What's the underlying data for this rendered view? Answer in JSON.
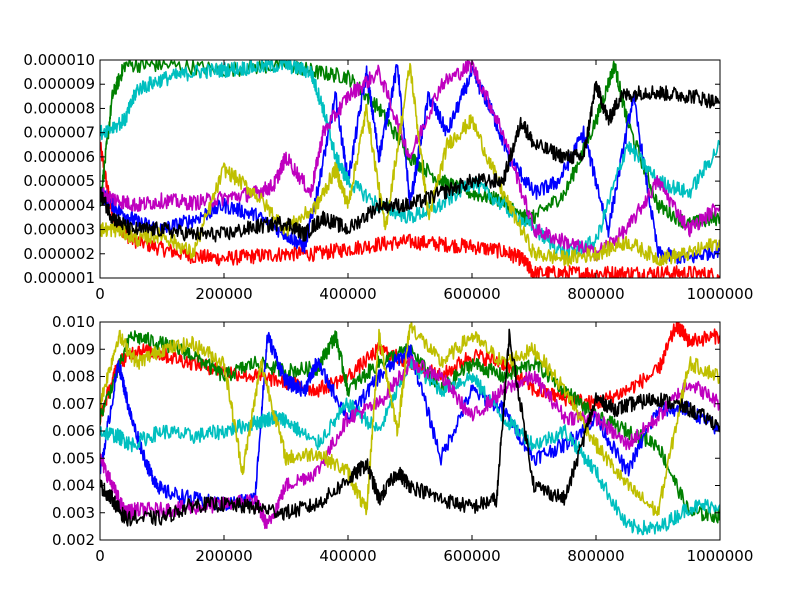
{
  "figure": {
    "background": "#ffffff"
  },
  "chart_data": [
    {
      "type": "line",
      "xlim": [
        0,
        1000000
      ],
      "ylim": [
        1e-06,
        1e-05
      ],
      "x_ticks": [
        0,
        200000,
        400000,
        600000,
        800000,
        1000000
      ],
      "x_tick_labels": [
        "0",
        "200000",
        "400000",
        "600000",
        "800000",
        "1000000"
      ],
      "y_ticks": [
        1e-06,
        2e-06,
        3e-06,
        4e-06,
        5e-06,
        6e-06,
        7e-06,
        8e-06,
        9e-06,
        1e-05
      ],
      "y_tick_labels": [
        "0.000001",
        "0.000002",
        "0.000003",
        "0.000004",
        "0.000005",
        "0.000006",
        "0.000007",
        "0.000008",
        "0.000009",
        "0.000010"
      ],
      "grid": false,
      "legend": "none",
      "series": [
        {
          "color": "#ff0000",
          "x": [
            0,
            20000,
            50000,
            100000,
            150000,
            200000,
            250000,
            300000,
            350000,
            400000,
            450000,
            500000,
            550000,
            600000,
            650000,
            680000,
            700000,
            750000,
            800000,
            850000,
            900000,
            950000,
            1000000
          ],
          "y": [
            6.5e-06,
            3.5e-06,
            2.6e-06,
            2.2e-06,
            1.9e-06,
            1.8e-06,
            1.9e-06,
            2e-06,
            2e-06,
            2.2e-06,
            2.4e-06,
            2.5e-06,
            2.4e-06,
            2.3e-06,
            2.1e-06,
            1.8e-06,
            1.2e-06,
            1.2e-06,
            1.2e-06,
            1.2e-06,
            1.2e-06,
            1.2e-06,
            1.1e-06
          ]
        },
        {
          "color": "#008000",
          "x": [
            0,
            20000,
            40000,
            100000,
            200000,
            300000,
            350000,
            400000,
            450000,
            500000,
            550000,
            600000,
            650000,
            680000,
            700000,
            750000,
            800000,
            830000,
            850000,
            900000,
            950000,
            1000000
          ],
          "y": [
            4e-06,
            8.5e-06,
            9.8e-06,
            9.8e-06,
            9.6e-06,
            9.8e-06,
            9.5e-06,
            9.3e-06,
            8e-06,
            6e-06,
            5e-06,
            4.5e-06,
            4.2e-06,
            3.5e-06,
            3.5e-06,
            4.5e-06,
            7.5e-06,
            9.8e-06,
            7.5e-06,
            4e-06,
            3.2e-06,
            3.5e-06
          ]
        },
        {
          "color": "#0000ff",
          "x": [
            0,
            30000,
            60000,
            100000,
            150000,
            200000,
            250000,
            300000,
            330000,
            350000,
            380000,
            400000,
            430000,
            450000,
            480000,
            500000,
            530000,
            560000,
            600000,
            630000,
            660000,
            700000,
            740000,
            780000,
            820000,
            860000,
            900000,
            950000,
            1000000
          ],
          "y": [
            4.5e-06,
            3.8e-06,
            3.3e-06,
            3e-06,
            3.4e-06,
            4e-06,
            3.6e-06,
            2.8e-06,
            2.3e-06,
            4.5e-06,
            8.5e-06,
            5e-06,
            9.5e-06,
            6e-06,
            9.8e-06,
            4e-06,
            8.5e-06,
            7e-06,
            9.5e-06,
            8e-06,
            6e-06,
            4.5e-06,
            5e-06,
            7e-06,
            3e-06,
            8.5e-06,
            2e-06,
            1.8e-06,
            2.2e-06
          ]
        },
        {
          "color": "#00bfbf",
          "x": [
            0,
            40000,
            60000,
            100000,
            150000,
            200000,
            250000,
            300000,
            340000,
            360000,
            380000,
            400000,
            450000,
            500000,
            550000,
            600000,
            650000,
            700000,
            750000,
            800000,
            850000,
            900000,
            950000,
            1000000
          ],
          "y": [
            7e-06,
            7.5e-06,
            8.8e-06,
            9.2e-06,
            9.5e-06,
            9.6e-06,
            9.7e-06,
            9.8e-06,
            9.5e-06,
            8e-06,
            6e-06,
            5e-06,
            4e-06,
            3.5e-06,
            4e-06,
            5e-06,
            4e-06,
            3e-06,
            2e-06,
            2.5e-06,
            6.5e-06,
            5e-06,
            4.5e-06,
            6.5e-06
          ]
        },
        {
          "color": "#bf00bf",
          "x": [
            0,
            30000,
            60000,
            100000,
            150000,
            200000,
            250000,
            280000,
            300000,
            340000,
            360000,
            400000,
            450000,
            500000,
            550000,
            600000,
            650000,
            700000,
            750000,
            800000,
            850000,
            900000,
            950000,
            1000000
          ],
          "y": [
            4.5e-06,
            4.2e-06,
            4e-06,
            4.2e-06,
            4.1e-06,
            4.3e-06,
            4.5e-06,
            4.8e-06,
            6e-06,
            4.5e-06,
            7e-06,
            8.5e-06,
            9.5e-06,
            6e-06,
            9e-06,
            9.8e-06,
            7e-06,
            3e-06,
            2.5e-06,
            2e-06,
            3e-06,
            5e-06,
            3e-06,
            4e-06
          ]
        },
        {
          "color": "#bfbf00",
          "x": [
            0,
            30000,
            60000,
            100000,
            150000,
            200000,
            250000,
            300000,
            350000,
            380000,
            400000,
            430000,
            460000,
            500000,
            530000,
            560000,
            600000,
            650000,
            700000,
            750000,
            800000,
            850000,
            900000,
            950000,
            1000000
          ],
          "y": [
            3e-06,
            3e-06,
            2.6e-06,
            2.8e-06,
            2e-06,
            5.5e-06,
            4.5e-06,
            3e-06,
            4e-06,
            5.5e-06,
            4e-06,
            8e-06,
            3e-06,
            9.8e-06,
            3.5e-06,
            6.5e-06,
            7.5e-06,
            4.5e-06,
            2e-06,
            1.8e-06,
            2e-06,
            2.5e-06,
            1.8e-06,
            2e-06,
            2.5e-06
          ]
        },
        {
          "color": "#000000",
          "x": [
            0,
            20000,
            50000,
            100000,
            150000,
            200000,
            250000,
            300000,
            330000,
            360000,
            400000,
            450000,
            500000,
            550000,
            600000,
            650000,
            680000,
            700000,
            750000,
            780000,
            800000,
            820000,
            840000,
            880000,
            920000,
            960000,
            1000000
          ],
          "y": [
            4.5e-06,
            3.5e-06,
            3e-06,
            3e-06,
            2.8e-06,
            2.8e-06,
            3.1e-06,
            3.3e-06,
            2.8e-06,
            3.5e-06,
            3e-06,
            4e-06,
            4e-06,
            4.5e-06,
            5e-06,
            5e-06,
            7.5e-06,
            6.5e-06,
            6e-06,
            6e-06,
            9e-06,
            7.5e-06,
            8.5e-06,
            8.7e-06,
            8.6e-06,
            8.5e-06,
            8.2e-06
          ]
        }
      ]
    },
    {
      "type": "line",
      "xlim": [
        0,
        1000000
      ],
      "ylim": [
        0.002,
        0.01
      ],
      "x_ticks": [
        0,
        200000,
        400000,
        600000,
        800000,
        1000000
      ],
      "x_tick_labels": [
        "0",
        "200000",
        "400000",
        "600000",
        "800000",
        "1000000"
      ],
      "y_ticks": [
        0.002,
        0.003,
        0.004,
        0.005,
        0.006,
        0.007,
        0.008,
        0.009,
        0.01
      ],
      "y_tick_labels": [
        "0.002",
        "0.003",
        "0.004",
        "0.005",
        "0.006",
        "0.007",
        "0.008",
        "0.009",
        "0.010"
      ],
      "grid": false,
      "legend": "none",
      "series": [
        {
          "color": "#ff0000",
          "x": [
            0,
            30000,
            60000,
            100000,
            150000,
            200000,
            250000,
            300000,
            350000,
            400000,
            450000,
            500000,
            550000,
            600000,
            650000,
            700000,
            750000,
            800000,
            850000,
            900000,
            930000,
            950000,
            1000000
          ],
          "y": [
            0.0065,
            0.0085,
            0.009,
            0.0088,
            0.0085,
            0.0082,
            0.008,
            0.0078,
            0.0075,
            0.008,
            0.009,
            0.0085,
            0.008,
            0.0088,
            0.0085,
            0.0075,
            0.0072,
            0.007,
            0.0075,
            0.0082,
            0.0099,
            0.0093,
            0.0095
          ]
        },
        {
          "color": "#008000",
          "x": [
            0,
            50000,
            100000,
            150000,
            200000,
            250000,
            300000,
            350000,
            380000,
            400000,
            450000,
            500000,
            550000,
            600000,
            650000,
            700000,
            750000,
            800000,
            850000,
            900000,
            950000,
            1000000
          ],
          "y": [
            0.0065,
            0.0095,
            0.0092,
            0.0088,
            0.008,
            0.0085,
            0.0082,
            0.0083,
            0.0095,
            0.0075,
            0.0085,
            0.009,
            0.0075,
            0.0085,
            0.008,
            0.0085,
            0.0075,
            0.0065,
            0.006,
            0.0055,
            0.003,
            0.0029
          ]
        },
        {
          "color": "#0000ff",
          "x": [
            0,
            30000,
            50000,
            80000,
            100000,
            150000,
            200000,
            250000,
            270000,
            300000,
            330000,
            350000,
            400000,
            450000,
            500000,
            550000,
            600000,
            650000,
            700000,
            750000,
            800000,
            850000,
            900000,
            950000,
            1000000
          ],
          "y": [
            0.0045,
            0.0085,
            0.0065,
            0.0045,
            0.0038,
            0.0035,
            0.0033,
            0.0035,
            0.0095,
            0.0078,
            0.0075,
            0.0085,
            0.0065,
            0.008,
            0.009,
            0.005,
            0.0075,
            0.0068,
            0.005,
            0.0055,
            0.0065,
            0.0045,
            0.0068,
            0.0068,
            0.006
          ]
        },
        {
          "color": "#00bfbf",
          "x": [
            0,
            30000,
            50000,
            100000,
            150000,
            200000,
            250000,
            280000,
            300000,
            350000,
            400000,
            450000,
            500000,
            550000,
            600000,
            650000,
            700000,
            750000,
            800000,
            850000,
            900000,
            950000,
            1000000
          ],
          "y": [
            0.006,
            0.0058,
            0.0055,
            0.006,
            0.0058,
            0.006,
            0.0063,
            0.0065,
            0.0064,
            0.0055,
            0.007,
            0.006,
            0.0085,
            0.0075,
            0.008,
            0.0065,
            0.0055,
            0.006,
            0.0045,
            0.0025,
            0.0024,
            0.0032,
            0.0033
          ]
        },
        {
          "color": "#bf00bf",
          "x": [
            0,
            20000,
            40000,
            60000,
            100000,
            150000,
            200000,
            250000,
            270000,
            300000,
            350000,
            400000,
            450000,
            500000,
            550000,
            600000,
            650000,
            700000,
            750000,
            800000,
            850000,
            900000,
            950000,
            1000000
          ],
          "y": [
            0.005,
            0.004,
            0.003,
            0.0031,
            0.0031,
            0.0032,
            0.0033,
            0.0035,
            0.0025,
            0.004,
            0.0045,
            0.0065,
            0.007,
            0.0085,
            0.008,
            0.0065,
            0.0075,
            0.008,
            0.0065,
            0.0065,
            0.0055,
            0.0065,
            0.0078,
            0.007
          ]
        },
        {
          "color": "#bfbf00",
          "x": [
            0,
            30000,
            60000,
            100000,
            150000,
            200000,
            230000,
            260000,
            300000,
            350000,
            400000,
            430000,
            450000,
            480000,
            500000,
            550000,
            600000,
            650000,
            700000,
            750000,
            800000,
            850000,
            900000,
            950000,
            1000000
          ],
          "y": [
            0.007,
            0.0095,
            0.0085,
            0.009,
            0.0092,
            0.0085,
            0.0045,
            0.0085,
            0.005,
            0.0052,
            0.0045,
            0.003,
            0.0095,
            0.006,
            0.0099,
            0.0085,
            0.0095,
            0.0085,
            0.009,
            0.0075,
            0.0055,
            0.004,
            0.003,
            0.0085,
            0.008
          ]
        },
        {
          "color": "#000000",
          "x": [
            0,
            20000,
            40000,
            100000,
            150000,
            200000,
            250000,
            300000,
            350000,
            400000,
            430000,
            450000,
            480000,
            500000,
            550000,
            600000,
            640000,
            660000,
            700000,
            750000,
            800000,
            830000,
            860000,
            900000,
            950000,
            1000000
          ],
          "y": [
            0.004,
            0.0035,
            0.0028,
            0.0028,
            0.0033,
            0.0033,
            0.0032,
            0.003,
            0.0033,
            0.0042,
            0.0048,
            0.0035,
            0.0045,
            0.004,
            0.0035,
            0.0032,
            0.0035,
            0.0095,
            0.004,
            0.0035,
            0.0072,
            0.0068,
            0.007,
            0.0072,
            0.0068,
            0.0062
          ]
        }
      ]
    }
  ]
}
